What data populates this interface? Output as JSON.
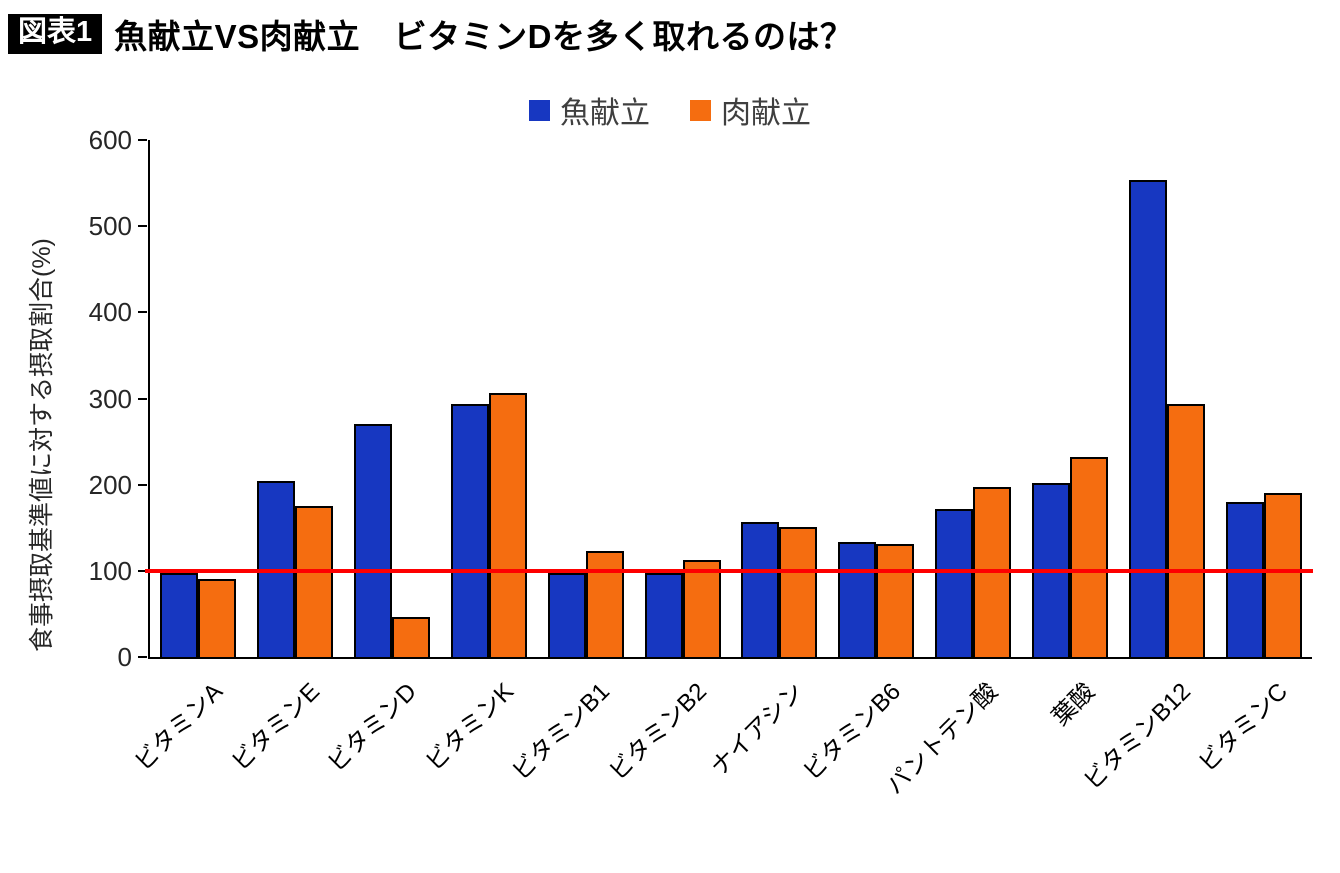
{
  "header": {
    "badge": "図表1",
    "title": "魚献立VS肉献立　ビタミンDを多く取れるのは？"
  },
  "chart_data": {
    "type": "bar",
    "title": "魚献立VS肉献立　ビタミンDを多く取れるのは？",
    "ylabel": "食事摂取基準値に対する摂取割合(%)",
    "xlabel": "",
    "ylim": [
      0,
      600
    ],
    "ytick_step": 100,
    "grid": false,
    "legend_position": "top",
    "categories": [
      "ビタミンA",
      "ビタミンE",
      "ビタミンD",
      "ビタミンK",
      "ビタミンB1",
      "ビタミンB2",
      "ナイアシン",
      "ビタミンB6",
      "パントテン酸",
      "葉酸",
      "ビタミンB12",
      "ビタミンC"
    ],
    "series": [
      {
        "name": "魚献立",
        "color": "#1737c1",
        "values": [
          97,
          204,
          270,
          294,
          97,
          97,
          157,
          133,
          172,
          202,
          554,
          180
        ]
      },
      {
        "name": "肉献立",
        "color": "#f56d10",
        "values": [
          91,
          175,
          46,
          306,
          123,
          113,
          151,
          131,
          197,
          232,
          294,
          190
        ]
      }
    ],
    "reference_line": {
      "value": 100,
      "color": "#fe0000"
    },
    "bar_border_color": "#000000"
  }
}
